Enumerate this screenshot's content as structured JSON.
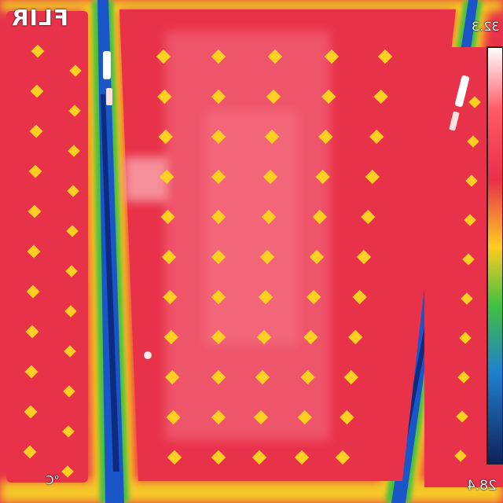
{
  "overlay": {
    "logo": "FLIR",
    "temp_max": "32.3",
    "temp_min": "28.4",
    "unit": "°C"
  },
  "palette": {
    "hot": "#ffffff",
    "warm": "#f3667a",
    "mid": "#e8324a",
    "cool_edge": "#ffcf1a",
    "cold": "#1040b0"
  }
}
